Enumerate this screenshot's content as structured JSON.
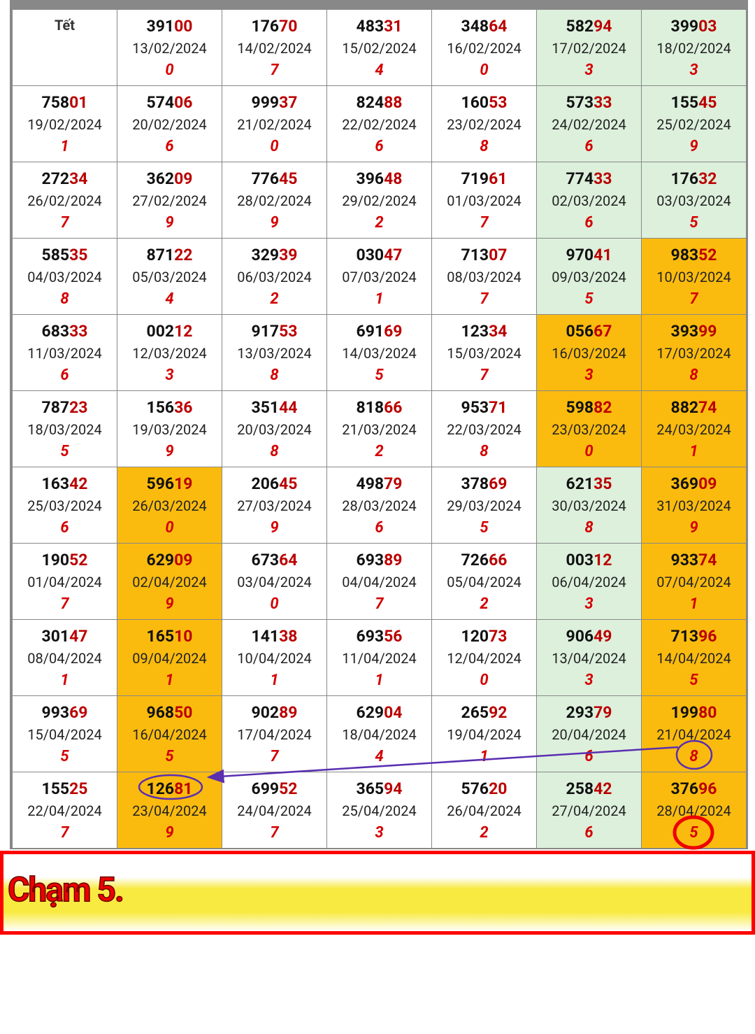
{
  "table": {
    "rows": [
      [
        {
          "label": "Tết"
        },
        {
          "n": "39100",
          "date": "13/02/2024",
          "touch": "0"
        },
        {
          "n": "17670",
          "date": "14/02/2024",
          "touch": "7"
        },
        {
          "n": "48331",
          "date": "15/02/2024",
          "touch": "4"
        },
        {
          "n": "34864",
          "date": "16/02/2024",
          "touch": "0"
        },
        {
          "n": "58294",
          "date": "17/02/2024",
          "touch": "3",
          "bg": "green"
        },
        {
          "n": "39903",
          "date": "18/02/2024",
          "touch": "3",
          "bg": "green"
        }
      ],
      [
        {
          "n": "75801",
          "date": "19/02/2024",
          "touch": "1"
        },
        {
          "n": "57406",
          "date": "20/02/2024",
          "touch": "6"
        },
        {
          "n": "99937",
          "date": "21/02/2024",
          "touch": "0"
        },
        {
          "n": "82488",
          "date": "22/02/2024",
          "touch": "6"
        },
        {
          "n": "16053",
          "date": "23/02/2024",
          "touch": "8"
        },
        {
          "n": "57333",
          "date": "24/02/2024",
          "touch": "6",
          "bg": "green"
        },
        {
          "n": "15545",
          "date": "25/02/2024",
          "touch": "9",
          "bg": "green"
        }
      ],
      [
        {
          "n": "27234",
          "date": "26/02/2024",
          "touch": "7"
        },
        {
          "n": "36209",
          "date": "27/02/2024",
          "touch": "9"
        },
        {
          "n": "77645",
          "date": "28/02/2024",
          "touch": "9"
        },
        {
          "n": "39648",
          "date": "29/02/2024",
          "touch": "2"
        },
        {
          "n": "71961",
          "date": "01/03/2024",
          "touch": "7"
        },
        {
          "n": "77433",
          "date": "02/03/2024",
          "touch": "6",
          "bg": "green"
        },
        {
          "n": "17632",
          "date": "03/03/2024",
          "touch": "5",
          "bg": "green"
        }
      ],
      [
        {
          "n": "58535",
          "date": "04/03/2024",
          "touch": "8"
        },
        {
          "n": "87122",
          "date": "05/03/2024",
          "touch": "4"
        },
        {
          "n": "32939",
          "date": "06/03/2024",
          "touch": "2"
        },
        {
          "n": "03047",
          "date": "07/03/2024",
          "touch": "1"
        },
        {
          "n": "71307",
          "date": "08/03/2024",
          "touch": "7"
        },
        {
          "n": "97041",
          "date": "09/03/2024",
          "touch": "5",
          "bg": "green"
        },
        {
          "n": "98352",
          "date": "10/03/2024",
          "touch": "7",
          "bg": "orange"
        }
      ],
      [
        {
          "n": "68333",
          "date": "11/03/2024",
          "touch": "6"
        },
        {
          "n": "00212",
          "date": "12/03/2024",
          "touch": "3"
        },
        {
          "n": "91753",
          "date": "13/03/2024",
          "touch": "8"
        },
        {
          "n": "69169",
          "date": "14/03/2024",
          "touch": "5"
        },
        {
          "n": "12334",
          "date": "15/03/2024",
          "touch": "7"
        },
        {
          "n": "05667",
          "date": "16/03/2024",
          "touch": "3",
          "bg": "orange"
        },
        {
          "n": "39399",
          "date": "17/03/2024",
          "touch": "8",
          "bg": "orange"
        }
      ],
      [
        {
          "n": "78723",
          "date": "18/03/2024",
          "touch": "5"
        },
        {
          "n": "15636",
          "date": "19/03/2024",
          "touch": "9"
        },
        {
          "n": "35144",
          "date": "20/03/2024",
          "touch": "8"
        },
        {
          "n": "81866",
          "date": "21/03/2024",
          "touch": "2"
        },
        {
          "n": "95371",
          "date": "22/03/2024",
          "touch": "8"
        },
        {
          "n": "59882",
          "date": "23/03/2024",
          "touch": "0",
          "bg": "orange"
        },
        {
          "n": "88274",
          "date": "24/03/2024",
          "touch": "1",
          "bg": "orange"
        }
      ],
      [
        {
          "n": "16342",
          "date": "25/03/2024",
          "touch": "6"
        },
        {
          "n": "59619",
          "date": "26/03/2024",
          "touch": "0",
          "bg": "orange"
        },
        {
          "n": "20645",
          "date": "27/03/2024",
          "touch": "9"
        },
        {
          "n": "49879",
          "date": "28/03/2024",
          "touch": "6"
        },
        {
          "n": "37869",
          "date": "29/03/2024",
          "touch": "5"
        },
        {
          "n": "62135",
          "date": "30/03/2024",
          "touch": "8",
          "bg": "green"
        },
        {
          "n": "36909",
          "date": "31/03/2024",
          "touch": "9",
          "bg": "orange"
        }
      ],
      [
        {
          "n": "19052",
          "date": "01/04/2024",
          "touch": "7"
        },
        {
          "n": "62909",
          "date": "02/04/2024",
          "touch": "9",
          "bg": "orange"
        },
        {
          "n": "67364",
          "date": "03/04/2024",
          "touch": "0"
        },
        {
          "n": "69389",
          "date": "04/04/2024",
          "touch": "7"
        },
        {
          "n": "72666",
          "date": "05/04/2024",
          "touch": "2"
        },
        {
          "n": "00312",
          "date": "06/04/2024",
          "touch": "3",
          "bg": "green"
        },
        {
          "n": "93374",
          "date": "07/04/2024",
          "touch": "1",
          "bg": "orange"
        }
      ],
      [
        {
          "n": "30147",
          "date": "08/04/2024",
          "touch": "1"
        },
        {
          "n": "16510",
          "date": "09/04/2024",
          "touch": "1",
          "bg": "orange"
        },
        {
          "n": "14138",
          "date": "10/04/2024",
          "touch": "1"
        },
        {
          "n": "69356",
          "date": "11/04/2024",
          "touch": "1"
        },
        {
          "n": "12073",
          "date": "12/04/2024",
          "touch": "0"
        },
        {
          "n": "90649",
          "date": "13/04/2024",
          "touch": "3",
          "bg": "green"
        },
        {
          "n": "71396",
          "date": "14/04/2024",
          "touch": "5",
          "bg": "orange"
        }
      ],
      [
        {
          "n": "99369",
          "date": "15/04/2024",
          "touch": "5"
        },
        {
          "n": "96850",
          "date": "16/04/2024",
          "touch": "5",
          "bg": "orange"
        },
        {
          "n": "90289",
          "date": "17/04/2024",
          "touch": "7"
        },
        {
          "n": "62904",
          "date": "18/04/2024",
          "touch": "4"
        },
        {
          "n": "26592",
          "date": "19/04/2024",
          "touch": "1"
        },
        {
          "n": "29379",
          "date": "20/04/2024",
          "touch": "6",
          "bg": "green"
        },
        {
          "n": "19980",
          "date": "21/04/2024",
          "touch": "8",
          "bg": "orange"
        }
      ],
      [
        {
          "n": "15525",
          "date": "22/04/2024",
          "touch": "7"
        },
        {
          "n": "12681",
          "date": "23/04/2024",
          "touch": "9",
          "bg": "orange"
        },
        {
          "n": "69952",
          "date": "24/04/2024",
          "touch": "7"
        },
        {
          "n": "36594",
          "date": "25/04/2024",
          "touch": "3"
        },
        {
          "n": "57620",
          "date": "26/04/2024",
          "touch": "2"
        },
        {
          "n": "25842",
          "date": "27/04/2024",
          "touch": "6",
          "bg": "green"
        },
        {
          "n": "37696",
          "date": "28/04/2024",
          "touch": "5",
          "bg": "orange"
        }
      ]
    ]
  },
  "caption": "Chạm 5."
}
